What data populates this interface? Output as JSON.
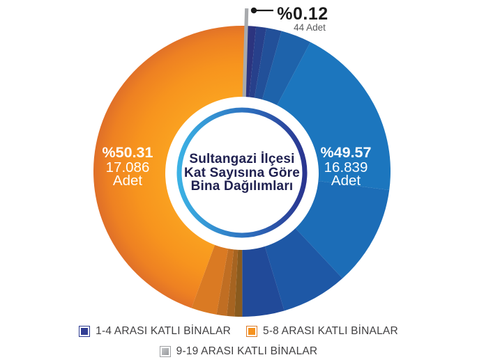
{
  "chart_data": {
    "type": "pie",
    "variant": "donut",
    "title": "Sultangazi İlçesi Kat Sayısına Göre Bina Dağılımları",
    "center_text_lines": [
      "Sultangazi İlçesi",
      "Kat Sayısına Göre",
      "Bina Dağılımları"
    ],
    "legend_position": "bottom",
    "rotation_deg": 1.0,
    "segments": [
      {
        "label": "1-4 ARASI KATLI BİNALAR",
        "percent": 49.57,
        "count": 16839,
        "percent_text": "%49.57",
        "count_text": "16.839",
        "unit_text": "Adet",
        "color": "#1C76BE",
        "swatch": "#333F94"
      },
      {
        "label": "5-8 ARASI KATLI BİNALAR",
        "percent": 50.31,
        "count": 17086,
        "percent_text": "%50.31",
        "count_text": "17.086",
        "unit_text": "Adet",
        "color": "#F6911E",
        "swatch": "#F6921E"
      },
      {
        "label": "9-19 ARASI KATLI BİNALAR",
        "percent": 0.12,
        "count": 44,
        "percent_text": "%0.12",
        "count_text": "44 Adet",
        "unit_text": "Adet",
        "color": "#A8AAAD",
        "swatch": "#A8AAAD"
      }
    ],
    "colors": {
      "blue_dark_edge": "#2C347F",
      "orange_dark_edge": "#8A5B1E",
      "ring_left": "#3BB1E4",
      "ring_right": "#2A3590",
      "center_text": "#1F2050",
      "legend_text": "#414042",
      "callout": "#1A1A1A",
      "count_subtle": "#58595B"
    }
  }
}
